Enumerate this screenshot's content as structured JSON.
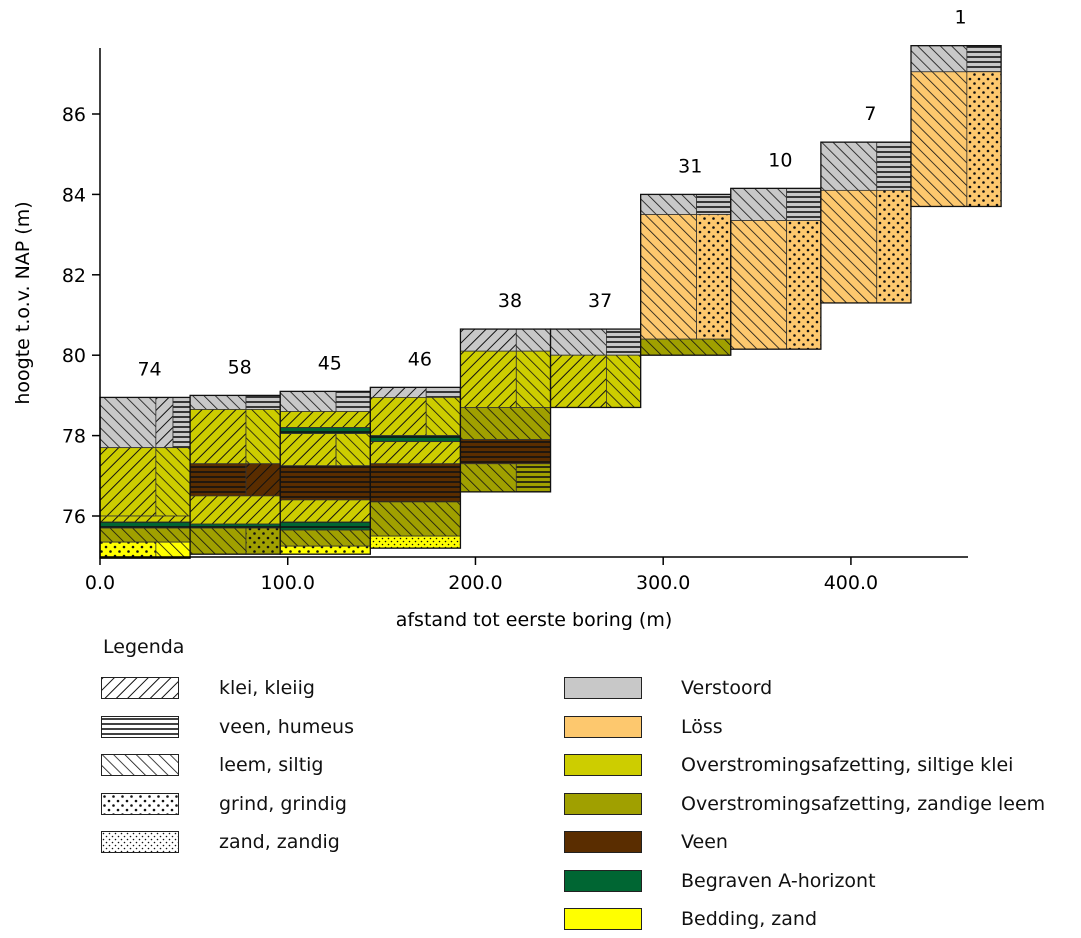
{
  "chart_data": {
    "type": "borehole-cross-section",
    "xlabel": "afstand tot eerste boring (m)",
    "ylabel": "hoogte t.o.v. NAP (m)",
    "xlim": [
      0,
      445
    ],
    "ylim": [
      74.9,
      88.0
    ],
    "xticks": [
      {
        "v": 0,
        "label": "0.0"
      },
      {
        "v": 100,
        "label": "100.0"
      },
      {
        "v": 200,
        "label": "200.0"
      },
      {
        "v": 300,
        "label": "300.0"
      },
      {
        "v": 400,
        "label": "400.0"
      }
    ],
    "yticks": [
      {
        "v": 76,
        "label": "76"
      },
      {
        "v": 78,
        "label": "78"
      },
      {
        "v": 80,
        "label": "80"
      },
      {
        "v": 82,
        "label": "82"
      },
      {
        "v": 84,
        "label": "84"
      },
      {
        "v": 86,
        "label": "86"
      }
    ],
    "colors": {
      "verstoord": "#c8c8c8",
      "loss": "#fdc86e",
      "siltige_klei": "#cdcd00",
      "zandige_leem": "#a0a000",
      "veen": "#5a2d00",
      "a_horizont": "#006633",
      "bedding": "#ffff00"
    },
    "borings": [
      {
        "name": "74",
        "x": 0,
        "top": 78.95,
        "layers": [
          {
            "top": 78.95,
            "bottom": 77.7,
            "unit": "verstoord",
            "lith": [
              "leem",
              "klei",
              "veen"
            ]
          },
          {
            "top": 77.7,
            "bottom": 76.0,
            "unit": "siltige_klei",
            "lith": [
              "klei",
              "leem"
            ]
          },
          {
            "top": 76.0,
            "bottom": 75.85,
            "unit": "siltige_klei",
            "lith": [
              "klei"
            ]
          },
          {
            "top": 75.85,
            "bottom": 75.7,
            "unit": "a_horizont",
            "lith": [
              "veen"
            ]
          },
          {
            "top": 75.7,
            "bottom": 75.35,
            "unit": "zandige_leem",
            "lith": [
              "leem"
            ]
          },
          {
            "top": 75.35,
            "bottom": 74.95,
            "unit": "bedding",
            "lith": [
              "grind",
              "leem"
            ]
          }
        ]
      },
      {
        "name": "58",
        "x": 48,
        "top": 79.0,
        "layers": [
          {
            "top": 79.0,
            "bottom": 78.65,
            "unit": "verstoord",
            "lith": [
              "leem",
              "veen"
            ]
          },
          {
            "top": 78.65,
            "bottom": 77.3,
            "unit": "siltige_klei",
            "lith": [
              "klei",
              "leem"
            ]
          },
          {
            "top": 77.3,
            "bottom": 76.5,
            "unit": "veen",
            "lith": [
              "veen",
              "klei"
            ]
          },
          {
            "top": 76.5,
            "bottom": 75.8,
            "unit": "siltige_klei",
            "lith": [
              "klei"
            ]
          },
          {
            "top": 75.8,
            "bottom": 75.7,
            "unit": "a_horizont",
            "lith": [
              "veen"
            ]
          },
          {
            "top": 75.7,
            "bottom": 75.05,
            "unit": "zandige_leem",
            "lith": [
              "leem",
              "grind"
            ]
          }
        ]
      },
      {
        "name": "45",
        "x": 96,
        "top": 79.1,
        "layers": [
          {
            "top": 79.1,
            "bottom": 78.6,
            "unit": "verstoord",
            "lith": [
              "leem",
              "veen"
            ]
          },
          {
            "top": 78.6,
            "bottom": 78.2,
            "unit": "siltige_klei",
            "lith": [
              "klei"
            ]
          },
          {
            "top": 78.2,
            "bottom": 78.05,
            "unit": "a_horizont",
            "lith": [
              "veen"
            ]
          },
          {
            "top": 78.05,
            "bottom": 77.25,
            "unit": "siltige_klei",
            "lith": [
              "klei",
              "leem"
            ]
          },
          {
            "top": 77.25,
            "bottom": 76.4,
            "unit": "veen",
            "lith": [
              "veen"
            ]
          },
          {
            "top": 76.4,
            "bottom": 75.85,
            "unit": "siltige_klei",
            "lith": [
              "klei"
            ]
          },
          {
            "top": 75.85,
            "bottom": 75.65,
            "unit": "a_horizont",
            "lith": [
              "veen"
            ]
          },
          {
            "top": 75.65,
            "bottom": 75.25,
            "unit": "zandige_leem",
            "lith": [
              "leem"
            ]
          },
          {
            "top": 75.25,
            "bottom": 75.05,
            "unit": "bedding",
            "lith": [
              "grind"
            ]
          }
        ]
      },
      {
        "name": "46",
        "x": 144,
        "top": 79.2,
        "layers": [
          {
            "top": 79.2,
            "bottom": 78.95,
            "unit": "verstoord",
            "lith": [
              "klei",
              "veen"
            ]
          },
          {
            "top": 78.95,
            "bottom": 78.0,
            "unit": "siltige_klei",
            "lith": [
              "klei",
              "leem"
            ]
          },
          {
            "top": 78.0,
            "bottom": 77.85,
            "unit": "a_horizont",
            "lith": [
              "veen"
            ]
          },
          {
            "top": 77.85,
            "bottom": 77.3,
            "unit": "siltige_klei",
            "lith": [
              "klei"
            ]
          },
          {
            "top": 77.3,
            "bottom": 76.35,
            "unit": "veen",
            "lith": [
              "veen"
            ]
          },
          {
            "top": 76.35,
            "bottom": 75.5,
            "unit": "zandige_leem",
            "lith": [
              "leem"
            ]
          },
          {
            "top": 75.5,
            "bottom": 75.2,
            "unit": "bedding",
            "lith": [
              "zand"
            ]
          }
        ]
      },
      {
        "name": "38",
        "x": 192,
        "top": 80.65,
        "layers": [
          {
            "top": 80.65,
            "bottom": 80.1,
            "unit": "verstoord",
            "lith": [
              "klei",
              "leem"
            ]
          },
          {
            "top": 80.1,
            "bottom": 78.7,
            "unit": "siltige_klei",
            "lith": [
              "klei",
              "leem"
            ]
          },
          {
            "top": 78.7,
            "bottom": 77.9,
            "unit": "zandige_leem",
            "lith": [
              "leem"
            ]
          },
          {
            "top": 77.9,
            "bottom": 77.3,
            "unit": "veen",
            "lith": [
              "veen"
            ]
          },
          {
            "top": 77.3,
            "bottom": 76.6,
            "unit": "zandige_leem",
            "lith": [
              "leem",
              "veen"
            ]
          }
        ]
      },
      {
        "name": "37",
        "x": 240,
        "top": 80.65,
        "layers": [
          {
            "top": 80.65,
            "bottom": 80.0,
            "unit": "verstoord",
            "lith": [
              "leem",
              "veen"
            ]
          },
          {
            "top": 80.0,
            "bottom": 78.7,
            "unit": "siltige_klei",
            "lith": [
              "klei",
              "leem"
            ]
          }
        ]
      },
      {
        "name": "31",
        "x": 288,
        "top": 84.0,
        "layers": [
          {
            "top": 84.0,
            "bottom": 83.5,
            "unit": "verstoord",
            "lith": [
              "leem",
              "veen"
            ]
          },
          {
            "top": 83.5,
            "bottom": 80.4,
            "unit": "loss",
            "lith": [
              "leem",
              "grind"
            ]
          },
          {
            "top": 80.4,
            "bottom": 80.0,
            "unit": "zandige_leem",
            "lith": [
              "leem"
            ]
          }
        ]
      },
      {
        "name": "10",
        "x": 336,
        "top": 84.15,
        "layers": [
          {
            "top": 84.15,
            "bottom": 83.35,
            "unit": "verstoord",
            "lith": [
              "leem",
              "veen"
            ]
          },
          {
            "top": 83.35,
            "bottom": 80.15,
            "unit": "loss",
            "lith": [
              "leem",
              "grind"
            ]
          }
        ]
      },
      {
        "name": "7",
        "x": 384,
        "top": 85.3,
        "layers": [
          {
            "top": 85.3,
            "bottom": 84.1,
            "unit": "verstoord",
            "lith": [
              "leem",
              "veen"
            ]
          },
          {
            "top": 84.1,
            "bottom": 81.3,
            "unit": "loss",
            "lith": [
              "leem",
              "grind"
            ]
          }
        ]
      },
      {
        "name": "1",
        "x": 432,
        "top": 87.7,
        "layers": [
          {
            "top": 87.7,
            "bottom": 87.05,
            "unit": "verstoord",
            "lith": [
              "leem",
              "veen"
            ]
          },
          {
            "top": 87.05,
            "bottom": 83.7,
            "unit": "loss",
            "lith": [
              "leem",
              "grind"
            ]
          }
        ]
      }
    ]
  },
  "legend": {
    "title": "Legenda",
    "lithology": [
      {
        "pattern": "klei",
        "label": "klei, kleiig"
      },
      {
        "pattern": "veen",
        "label": "veen, humeus"
      },
      {
        "pattern": "leem",
        "label": "leem, siltig"
      },
      {
        "pattern": "grind",
        "label": "grind, grindig"
      },
      {
        "pattern": "zand",
        "label": "zand, zandig"
      }
    ],
    "units": [
      {
        "color": "#c8c8c8",
        "label": "Verstoord"
      },
      {
        "color": "#fdc86e",
        "label": "Löss"
      },
      {
        "color": "#cdcd00",
        "label": "Overstromingsafzetting, siltige klei"
      },
      {
        "color": "#a0a000",
        "label": "Overstromingsafzetting, zandige leem"
      },
      {
        "color": "#5a2d00",
        "label": "Veen"
      },
      {
        "color": "#006633",
        "label": "Begraven A-horizont"
      },
      {
        "color": "#ffff00",
        "label": "Bedding, zand"
      }
    ]
  }
}
